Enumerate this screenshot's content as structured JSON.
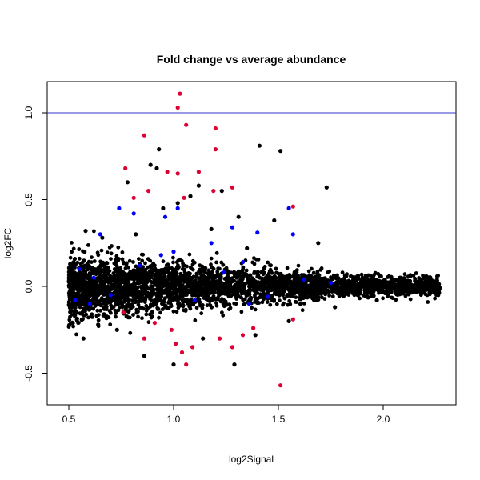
{
  "chart_data": {
    "type": "scatter",
    "title": "Fold change vs average abundance",
    "xlabel": "log2Signal",
    "ylabel": "log2FC",
    "xlim": [
      0.4,
      2.35
    ],
    "ylim": [
      -0.6,
      1.2
    ],
    "x_ticks": [
      "0.5",
      "1.0",
      "1.5",
      "2.0"
    ],
    "y_ticks": [
      "-0.5",
      "0.0",
      "0.5",
      "1.0"
    ],
    "x_tick_values": [
      0.5,
      1.0,
      1.5,
      2.0
    ],
    "y_tick_values": [
      -0.5,
      0.0,
      0.5,
      1.0
    ],
    "grid": false,
    "reference_line": {
      "orientation": "horizontal",
      "y": 1.0,
      "color": "#3333cc"
    },
    "series": [
      {
        "color": "#000000",
        "points": [
          [
            0.93,
            0.79
          ],
          [
            1.41,
            0.81
          ],
          [
            1.51,
            0.78
          ],
          [
            0.89,
            0.7
          ],
          [
            0.92,
            0.68
          ],
          [
            1.73,
            0.57
          ],
          [
            0.78,
            0.6
          ],
          [
            1.12,
            0.58
          ],
          [
            1.23,
            0.55
          ],
          [
            1.08,
            0.52
          ],
          [
            0.95,
            0.45
          ],
          [
            1.02,
            0.48
          ],
          [
            1.31,
            0.4
          ],
          [
            1.48,
            0.38
          ],
          [
            1.69,
            0.25
          ],
          [
            0.58,
            0.32
          ],
          [
            0.66,
            0.28
          ],
          [
            0.82,
            0.3
          ],
          [
            1.18,
            0.33
          ],
          [
            1.35,
            0.22
          ],
          [
            0.57,
            -0.3
          ],
          [
            0.86,
            -0.4
          ],
          [
            1.0,
            -0.45
          ],
          [
            1.29,
            -0.45
          ],
          [
            0.64,
            -0.22
          ],
          [
            0.73,
            -0.25
          ],
          [
            1.14,
            -0.3
          ],
          [
            1.39,
            -0.28
          ],
          [
            1.55,
            -0.2
          ],
          [
            1.77,
            -0.12
          ],
          [
            1.97,
            -0.08
          ],
          [
            2.08,
            0.05
          ],
          [
            2.27,
            -0.01
          ],
          [
            2.16,
            0.02
          ],
          [
            1.88,
            0.06
          ]
        ]
      },
      {
        "color": "#0000ff",
        "points": [
          [
            1.02,
            0.45
          ],
          [
            1.55,
            0.45
          ],
          [
            0.74,
            0.45
          ],
          [
            0.81,
            0.42
          ],
          [
            0.96,
            0.4
          ],
          [
            1.28,
            0.34
          ],
          [
            1.4,
            0.31
          ],
          [
            0.65,
            0.3
          ],
          [
            1.18,
            0.25
          ],
          [
            1.57,
            0.3
          ],
          [
            0.55,
            0.1
          ],
          [
            0.62,
            0.05
          ],
          [
            0.7,
            -0.05
          ],
          [
            0.84,
            0.12
          ],
          [
            1.24,
            0.08
          ],
          [
            1.45,
            -0.06
          ],
          [
            1.62,
            0.04
          ],
          [
            1.1,
            -0.08
          ],
          [
            0.94,
            0.18
          ],
          [
            1.33,
            0.14
          ],
          [
            0.53,
            -0.08
          ],
          [
            0.6,
            -0.1
          ],
          [
            1.75,
            0.02
          ],
          [
            1.36,
            -0.1
          ],
          [
            1.0,
            0.2
          ]
        ]
      },
      {
        "color": "#dd0033",
        "points": [
          [
            1.03,
            1.11
          ],
          [
            1.02,
            1.03
          ],
          [
            1.06,
            0.93
          ],
          [
            1.2,
            0.91
          ],
          [
            1.2,
            0.79
          ],
          [
            0.86,
            0.87
          ],
          [
            0.77,
            0.68
          ],
          [
            0.97,
            0.66
          ],
          [
            1.02,
            0.65
          ],
          [
            1.12,
            0.66
          ],
          [
            1.28,
            0.57
          ],
          [
            1.19,
            0.55
          ],
          [
            0.81,
            0.51
          ],
          [
            0.88,
            0.55
          ],
          [
            1.57,
            0.46
          ],
          [
            1.05,
            0.51
          ],
          [
            1.57,
            -0.19
          ],
          [
            1.51,
            -0.57
          ],
          [
            1.06,
            -0.45
          ],
          [
            1.09,
            -0.35
          ],
          [
            0.86,
            -0.3
          ],
          [
            1.28,
            -0.35
          ],
          [
            0.99,
            -0.25
          ],
          [
            1.33,
            -0.28
          ],
          [
            1.38,
            -0.24
          ],
          [
            0.76,
            -0.15
          ],
          [
            0.91,
            -0.21
          ],
          [
            1.22,
            -0.3
          ],
          [
            1.01,
            -0.33
          ],
          [
            1.04,
            -0.38
          ]
        ]
      }
    ]
  }
}
